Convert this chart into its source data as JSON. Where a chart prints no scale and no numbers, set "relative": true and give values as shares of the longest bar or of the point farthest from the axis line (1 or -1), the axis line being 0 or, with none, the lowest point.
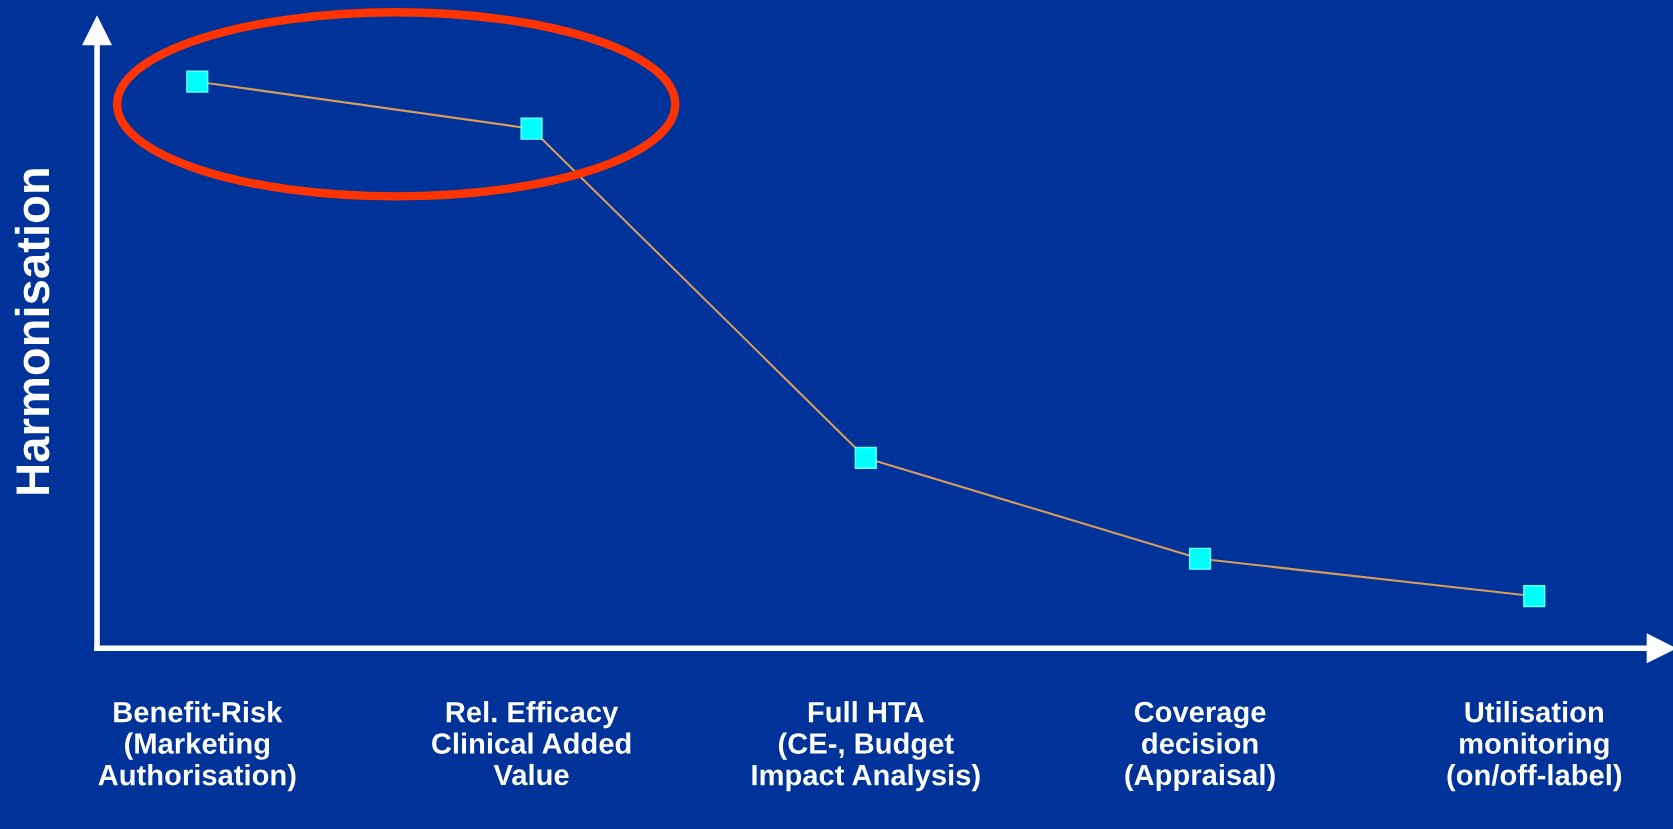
{
  "chart_data": {
    "type": "line",
    "relative": true,
    "ylabel": "Harmonisation",
    "categories": [
      "Benefit-Risk\n(Marketing\nAuthorisation)",
      "Rel. Efficacy\nClinical Added\nValue",
      "Full HTA\n(CE-, Budget\nImpact Analysis)",
      "Coverage\ndecision\n(Appraisal)",
      "Utilisation\nmonitoring\n(on/off-label)"
    ],
    "series": [
      {
        "color": "#d99a5e",
        "values": [
          1,
          0.917,
          0.336,
          0.158,
          0.092
        ]
      }
    ],
    "marker": "square",
    "line_style": "solid",
    "grid": false,
    "legend": false
  }
}
